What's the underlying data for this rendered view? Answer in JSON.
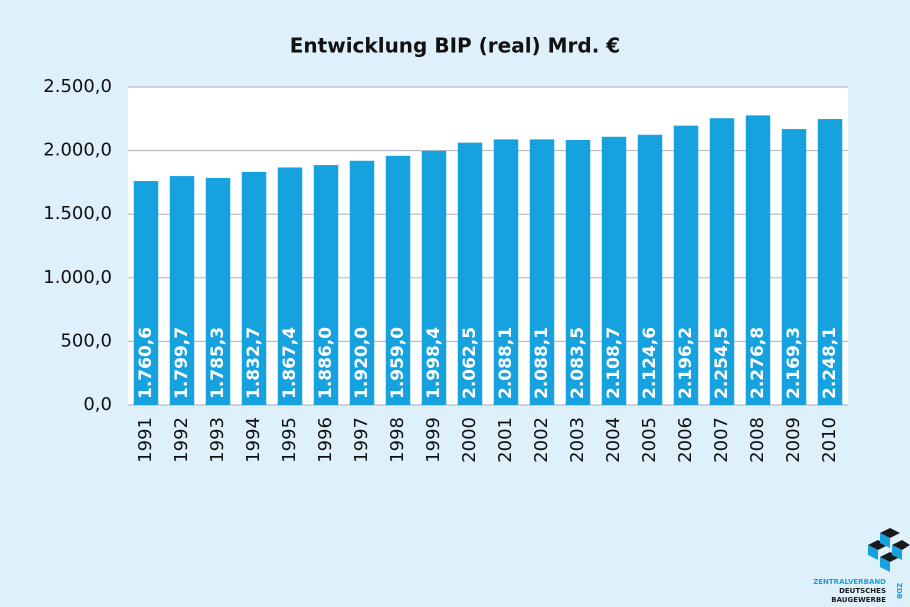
{
  "chart_data": {
    "type": "bar",
    "title": "Entwicklung BIP (real) Mrd. €",
    "categories": [
      "1991",
      "1992",
      "1993",
      "1994",
      "1995",
      "1996",
      "1997",
      "1998",
      "1999",
      "2000",
      "2001",
      "2002",
      "2003",
      "2004",
      "2005",
      "2006",
      "2007",
      "2008",
      "2009",
      "2010"
    ],
    "values": [
      1760.6,
      1799.7,
      1785.3,
      1832.7,
      1867.4,
      1886.0,
      1920.0,
      1959.0,
      1998.4,
      2062.5,
      2088.1,
      2088.1,
      2083.5,
      2108.7,
      2124.6,
      2196.2,
      2254.5,
      2276.8,
      2169.3,
      2248.1
    ],
    "value_labels": [
      "1.760,6",
      "1.799,7",
      "1.785,3",
      "1.832,7",
      "1.867,4",
      "1.886,0",
      "1.920,0",
      "1.959,0",
      "1.998,4",
      "2.062,5",
      "2.088,1",
      "2.088,1",
      "2.083,5",
      "2.108,7",
      "2.124,6",
      "2.196,2",
      "2.254,5",
      "2.276,8",
      "2.169,3",
      "2.248,1"
    ],
    "color": "#16a1df",
    "ylim": [
      0,
      2500
    ],
    "yticks": [
      {
        "value": 0,
        "label": "0,0"
      },
      {
        "value": 500,
        "label": "500,0"
      },
      {
        "value": 1000,
        "label": "1.000,0"
      },
      {
        "value": 1500,
        "label": "1.500,0"
      },
      {
        "value": 2000,
        "label": "2.000,0"
      },
      {
        "value": 2500,
        "label": "2.500,0"
      }
    ],
    "grid": true
  },
  "logo": {
    "line1": "ZENTRALVERBAND",
    "line2": "DEUTSCHES",
    "line3": "BAUGEWERBE",
    "short": "ZDB"
  }
}
